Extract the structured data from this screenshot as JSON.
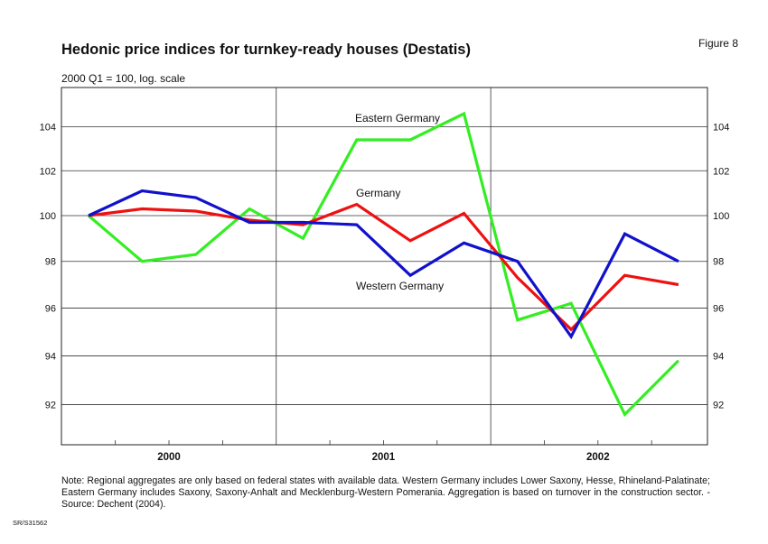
{
  "page": {
    "title": "Hedonic price indices for turnkey-ready houses (Destatis)",
    "figure_label": "Figure 8",
    "subtitle": "2000 Q1 = 100, log. scale",
    "note": "Note: Regional aggregates are only based on federal states with available data. Western Germany includes Lower Saxony, Hesse, Rhineland-Palatinate; Eastern Germany includes Saxony, Saxony-Anhalt and Mecklenburg-Western Pomerania. Aggregation is based on turnover in the construction sector. -  Source: Dechent (2004).",
    "code": "SR/S31562"
  },
  "chart_data": {
    "type": "line",
    "title": "Hedonic price indices for turnkey-ready houses (Destatis)",
    "ylabel": "2000 Q1 = 100, log. scale",
    "log_scale": true,
    "ylim": [
      90.0,
      106.0
    ],
    "yticks": [
      92,
      94,
      96,
      98,
      100,
      102,
      104
    ],
    "year_labels": [
      "2000",
      "2001",
      "2002"
    ],
    "x": [
      "2000 Q1",
      "2000 Q2",
      "2000 Q3",
      "2000 Q4",
      "2001 Q1",
      "2001 Q2",
      "2001 Q3",
      "2001 Q4",
      "2002 Q1",
      "2002 Q2",
      "2002 Q3",
      "2002 Q4"
    ],
    "grid": "vertical year separators and horizontal gridlines",
    "series": [
      {
        "name": "Eastern Germany",
        "color": "#33ee22",
        "values": [
          100.0,
          98.0,
          98.3,
          100.3,
          99.0,
          103.4,
          103.4,
          104.6,
          95.5,
          96.2,
          91.6,
          93.8
        ]
      },
      {
        "name": "Germany",
        "color": "#ee1111",
        "values": [
          100.0,
          100.3,
          100.2,
          99.8,
          99.6,
          100.5,
          98.9,
          100.1,
          97.3,
          95.1,
          97.4,
          97.0
        ]
      },
      {
        "name": "Western Germany",
        "color": "#1111cc",
        "values": [
          100.0,
          101.1,
          100.8,
          99.7,
          99.7,
          99.6,
          97.4,
          98.8,
          98.0,
          94.8,
          99.2,
          98.0
        ]
      }
    ]
  }
}
